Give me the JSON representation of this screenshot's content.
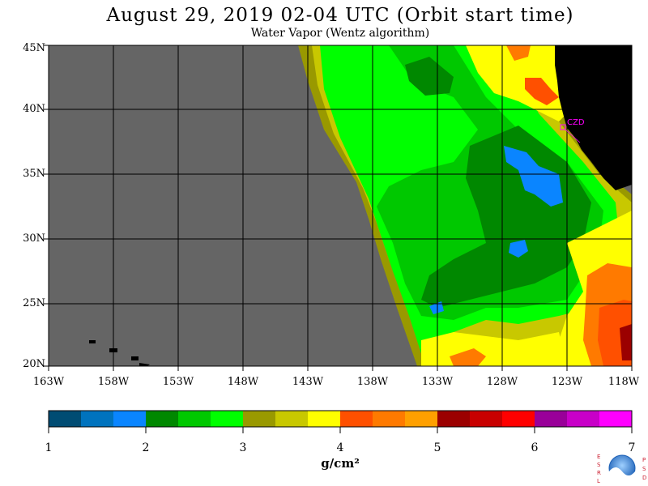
{
  "title": "August 29, 2019  02-04 UTC  (Orbit start time)",
  "subtitle": "Water Vapor (Wentz algorithm)",
  "map": {
    "lat_labels": [
      "45N",
      "40N",
      "35N",
      "30N",
      "25N",
      "20N"
    ],
    "lon_labels": [
      "163W",
      "158W",
      "153W",
      "148W",
      "143W",
      "138W",
      "133W",
      "128W",
      "123W",
      "118W"
    ],
    "station_label": "CZD",
    "colors": {
      "no_data": "#656565",
      "land": "#000000",
      "station": "#ff00ff"
    }
  },
  "colorbar": {
    "labels": [
      "1",
      "2",
      "3",
      "4",
      "5",
      "6",
      "7"
    ],
    "units": "g/cm²",
    "colors": [
      "#004c73",
      "#0073be",
      "#0a85ff",
      "#008800",
      "#00c800",
      "#00ff00",
      "#999900",
      "#c8c800",
      "#ffff00",
      "#ff5000",
      "#ff7a00",
      "#ffa000",
      "#9b0000",
      "#c80000",
      "#ff0000",
      "#990099",
      "#c800c8",
      "#ff00ff"
    ]
  },
  "logo": {
    "name": "NOAA",
    "left_letters": [
      "E",
      "S",
      "R",
      "L"
    ],
    "right_letters": [
      "P",
      "S",
      "D"
    ]
  }
}
